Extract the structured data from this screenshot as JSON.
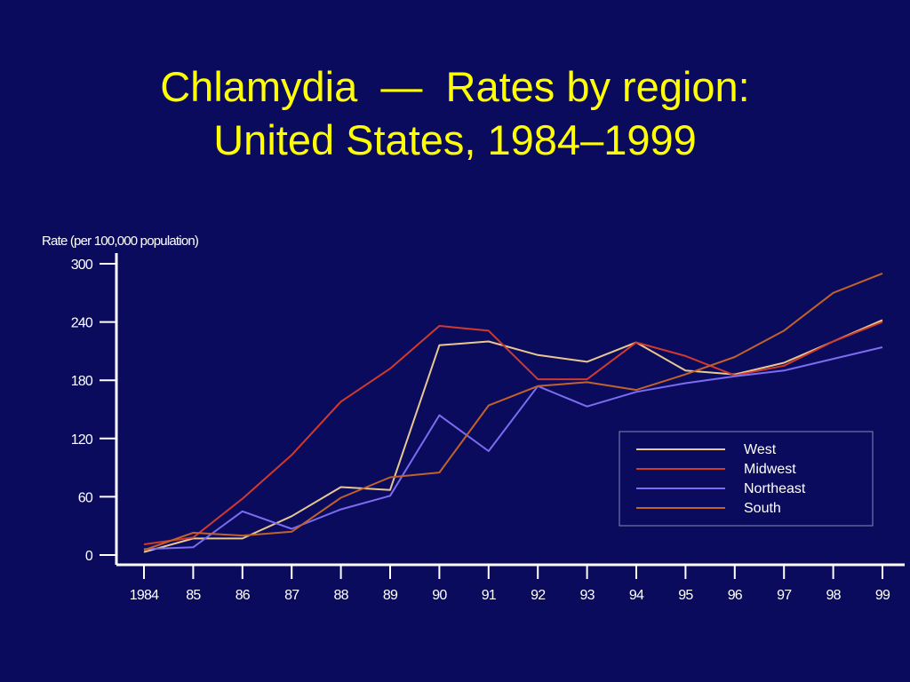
{
  "slide": {
    "title_line1": "Chlamydia  —  Rates by region:",
    "title_line2": "United States, 1984–1999"
  },
  "colors": {
    "background": "#0b0b5e",
    "title": "#ffff00",
    "axis": "#ffffff"
  },
  "chart_data": {
    "type": "line",
    "ylabel": "Rate (per 100,000 population)",
    "xlabel": "",
    "x": [
      1984,
      1985,
      1986,
      1987,
      1988,
      1989,
      1990,
      1991,
      1992,
      1993,
      1994,
      1995,
      1996,
      1997,
      1998,
      1999
    ],
    "x_tick_labels": [
      "1984",
      "85",
      "86",
      "87",
      "88",
      "89",
      "90",
      "91",
      "92",
      "93",
      "94",
      "95",
      "96",
      "97",
      "98",
      "99"
    ],
    "ylim": [
      0,
      300
    ],
    "y_ticks": [
      0,
      60,
      120,
      180,
      240,
      300
    ],
    "grid": false,
    "legend_position": "right",
    "series": [
      {
        "name": "West",
        "color": "#e8c890",
        "values": [
          3,
          17,
          17,
          40,
          70,
          67,
          216,
          220,
          206,
          199,
          219,
          190,
          186,
          198,
          220,
          242
        ]
      },
      {
        "name": "Midwest",
        "color": "#d03a2c",
        "values": [
          11,
          18,
          58,
          103,
          158,
          192,
          236,
          231,
          181,
          181,
          219,
          205,
          185,
          195,
          220,
          240
        ]
      },
      {
        "name": "Northeast",
        "color": "#7b6cf0",
        "values": [
          6,
          8,
          45,
          27,
          47,
          61,
          144,
          107,
          174,
          153,
          168,
          177,
          184,
          190,
          202,
          214
        ]
      },
      {
        "name": "South",
        "color": "#c0622a",
        "values": [
          5,
          23,
          20,
          24,
          59,
          80,
          85,
          154,
          174,
          178,
          170,
          186,
          204,
          231,
          270,
          290
        ]
      }
    ]
  }
}
